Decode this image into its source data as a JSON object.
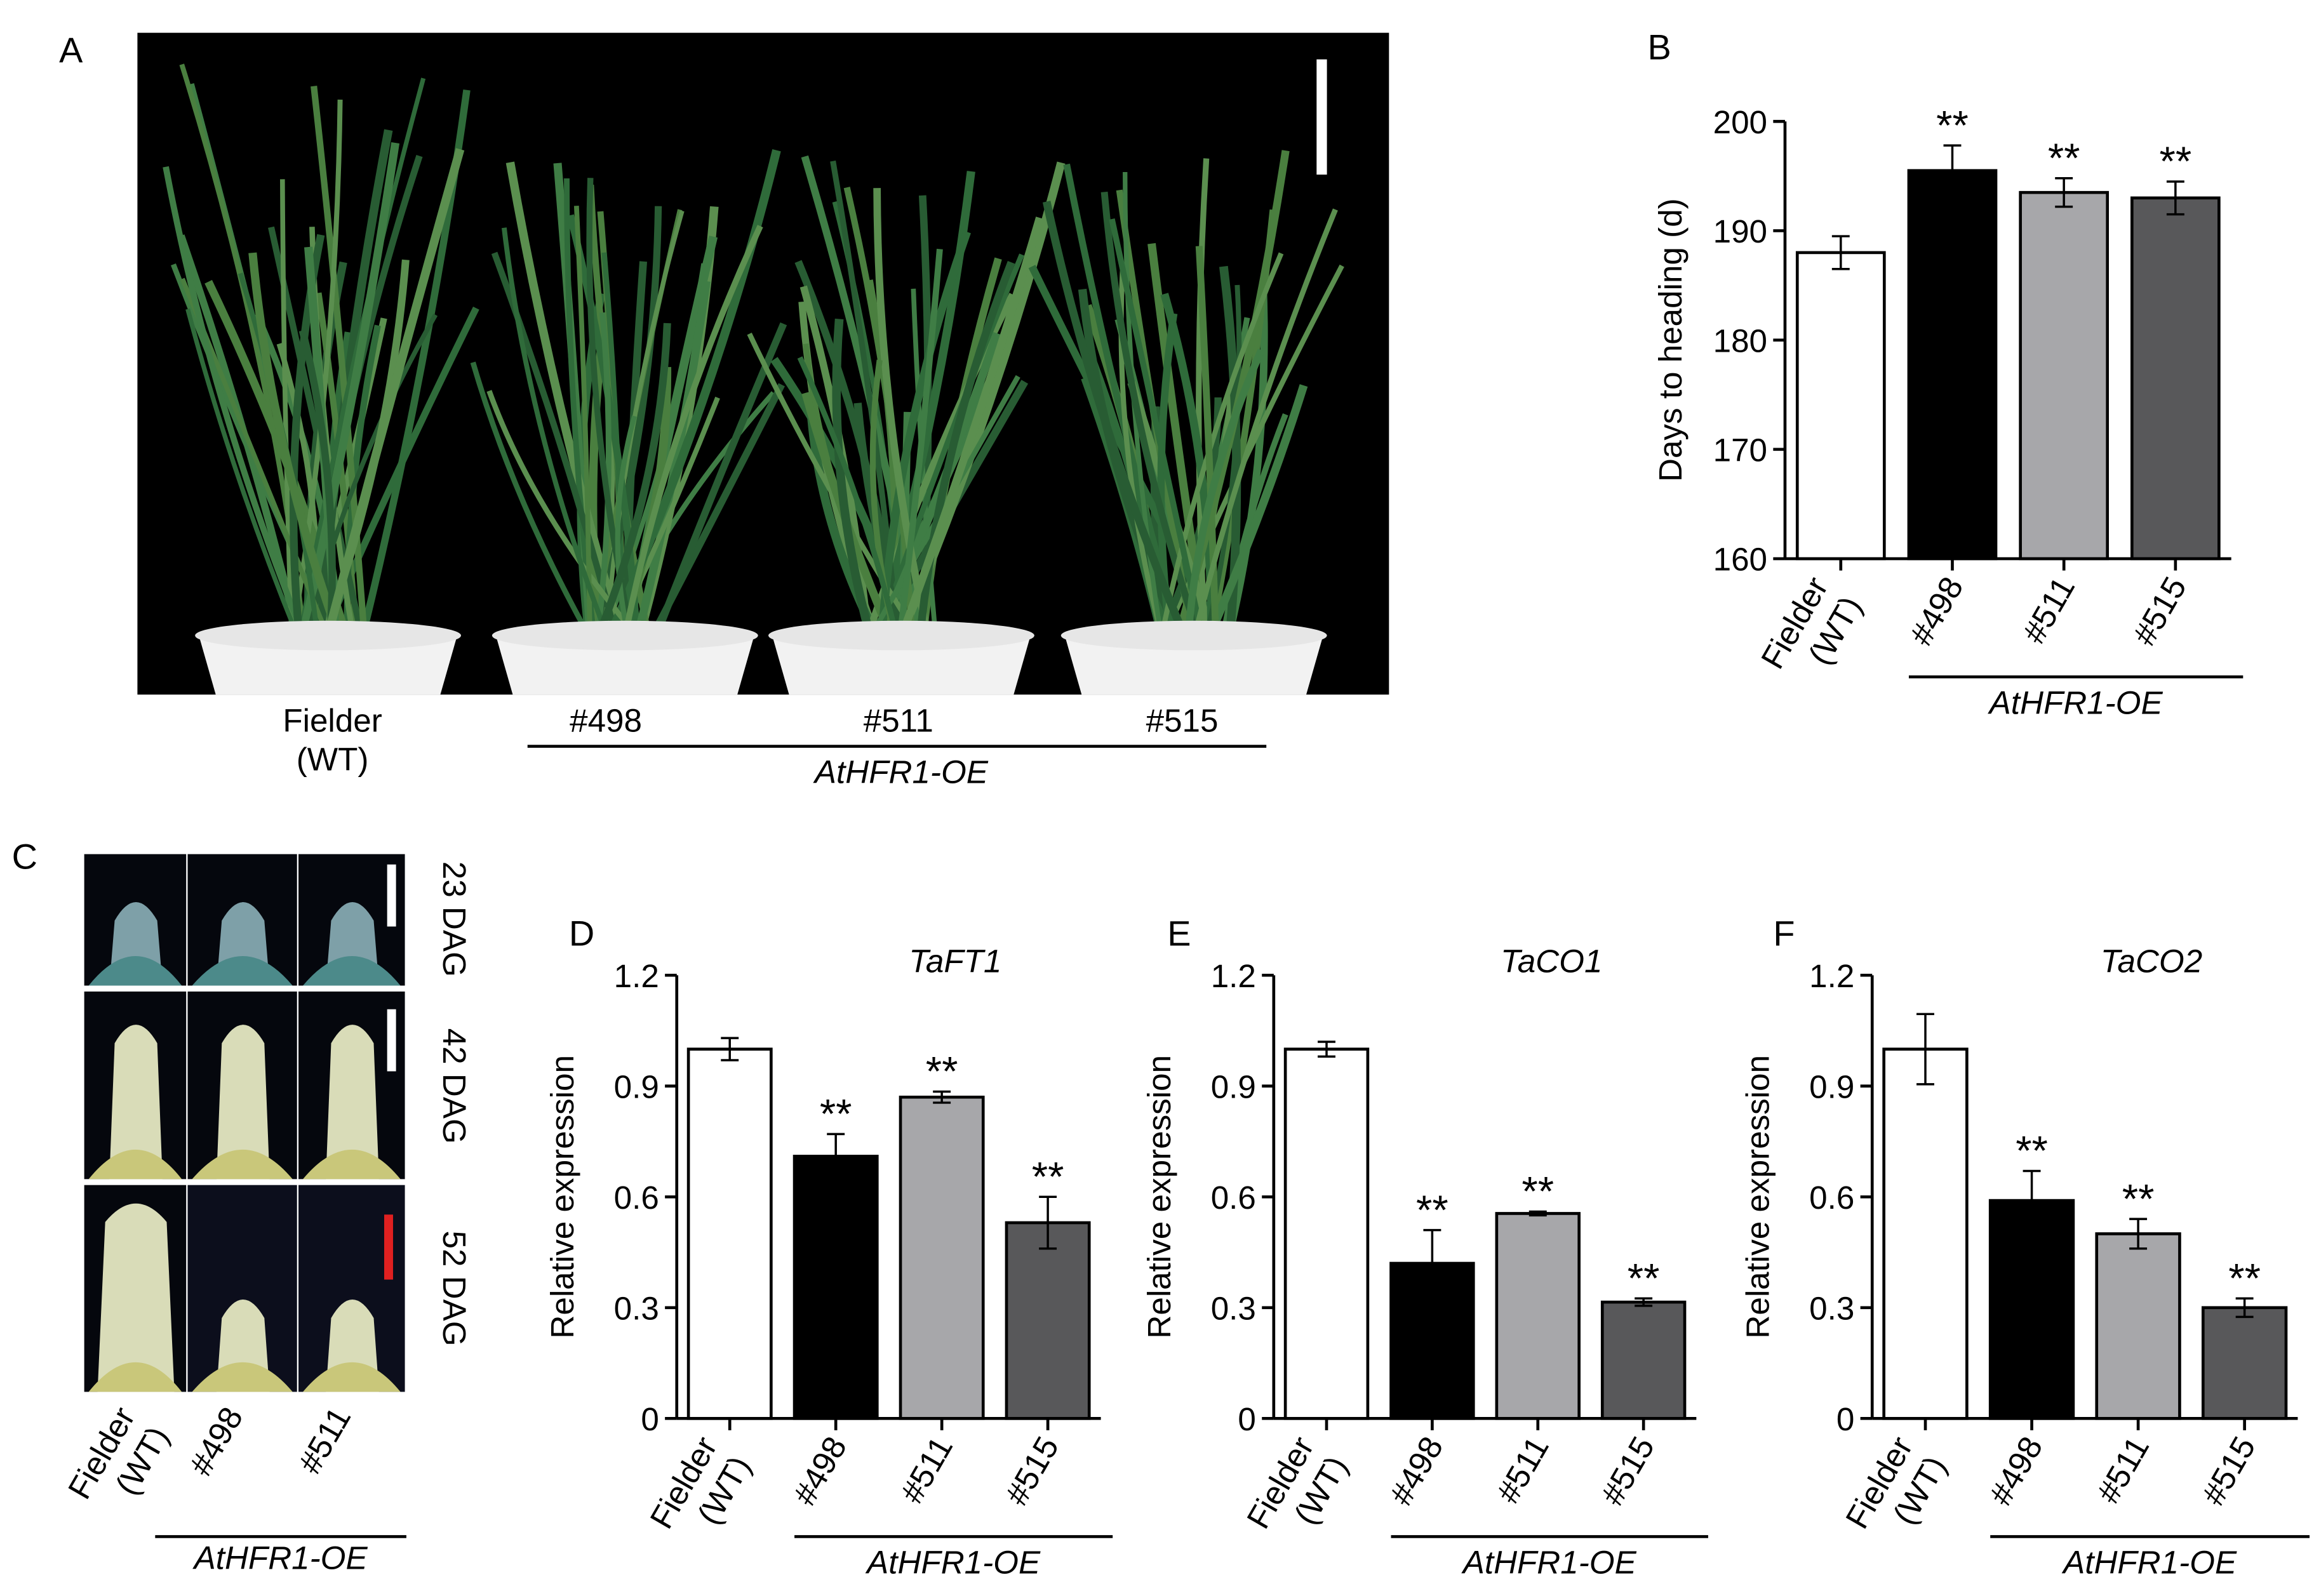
{
  "panels": {
    "A": {
      "label": "A",
      "pots": [
        "Fielder\n(WT)",
        "#498",
        "#511",
        "#515"
      ],
      "group_label": "AtHFR1-OE"
    },
    "C": {
      "label": "C",
      "stages": [
        "23 DAG",
        "42 DAG",
        "52 DAG"
      ],
      "lines": [
        "Fielder\n(WT)",
        "#498",
        "#511"
      ],
      "group_label": "AtHFR1-OE"
    }
  },
  "chart_data": [
    {
      "type": "bar",
      "panel_label": "B",
      "ylabel": "Days to heading (d)",
      "categories": [
        "Fielder\n(WT)",
        "#498",
        "#511",
        "#515"
      ],
      "values": [
        188,
        195.5,
        193.5,
        193
      ],
      "errors": [
        1.5,
        2.3,
        1.3,
        1.5
      ],
      "colors": [
        "#ffffff",
        "#000000",
        "#a7a7aa",
        "#58585a"
      ],
      "significance": [
        null,
        "**",
        "**",
        "**"
      ],
      "group_label": "AtHFR1-OE",
      "ylim": [
        160,
        200
      ],
      "yticks": [
        160,
        170,
        180,
        190,
        200
      ]
    },
    {
      "type": "bar",
      "panel_label": "D",
      "title": "TaFT1",
      "ylabel": "Relative expression",
      "categories": [
        "Fielder\n(WT)",
        "#498",
        "#511",
        "#515"
      ],
      "values": [
        1.0,
        0.71,
        0.87,
        0.53
      ],
      "errors": [
        0.03,
        0.06,
        0.015,
        0.07
      ],
      "colors": [
        "#ffffff",
        "#000000",
        "#a7a7aa",
        "#58585a"
      ],
      "significance": [
        null,
        "**",
        "**",
        "**"
      ],
      "group_label": "AtHFR1-OE",
      "ylim": [
        0,
        1.2
      ],
      "yticks": [
        0,
        0.3,
        0.6,
        0.9,
        1.2
      ]
    },
    {
      "type": "bar",
      "panel_label": "E",
      "title": "TaCO1",
      "ylabel": "Relative expression",
      "categories": [
        "Fielder\n(WT)",
        "#498",
        "#511",
        "#515"
      ],
      "values": [
        1.0,
        0.42,
        0.555,
        0.315
      ],
      "errors": [
        0.02,
        0.09,
        0.005,
        0.01
      ],
      "colors": [
        "#ffffff",
        "#000000",
        "#a7a7aa",
        "#58585a"
      ],
      "significance": [
        null,
        "**",
        "**",
        "**"
      ],
      "group_label": "AtHFR1-OE",
      "ylim": [
        0,
        1.2
      ],
      "yticks": [
        0,
        0.3,
        0.6,
        0.9,
        1.2
      ]
    },
    {
      "type": "bar",
      "panel_label": "F",
      "title": "TaCO2",
      "ylabel": "Relative expression",
      "categories": [
        "Fielder\n(WT)",
        "#498",
        "#511",
        "#515"
      ],
      "values": [
        1.0,
        0.59,
        0.5,
        0.3
      ],
      "errors": [
        0.095,
        0.08,
        0.04,
        0.025
      ],
      "colors": [
        "#ffffff",
        "#000000",
        "#a7a7aa",
        "#58585a"
      ],
      "significance": [
        null,
        "**",
        "**",
        "**"
      ],
      "group_label": "AtHFR1-OE",
      "ylim": [
        0,
        1.2
      ],
      "yticks": [
        0,
        0.3,
        0.6,
        0.9,
        1.2
      ]
    }
  ]
}
